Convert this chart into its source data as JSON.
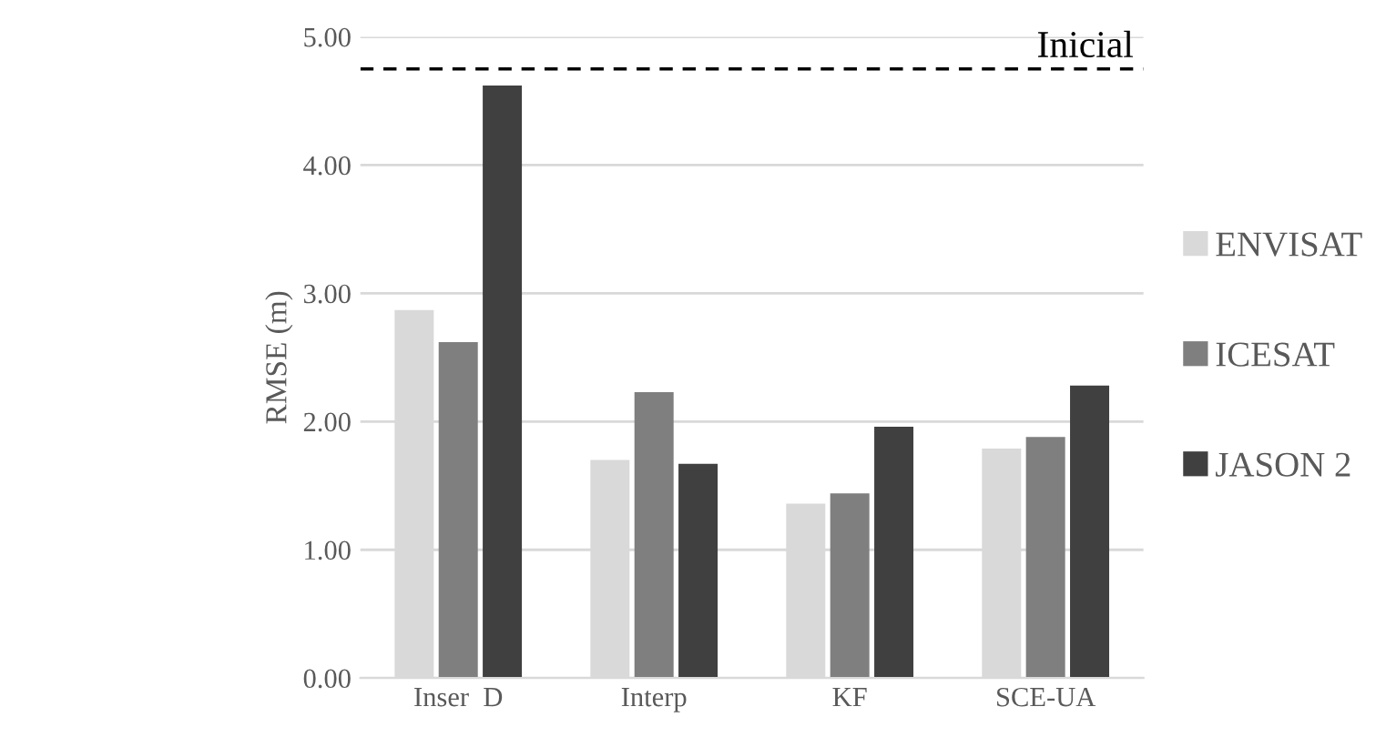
{
  "chart_data": {
    "type": "bar",
    "ylabel": "RMSE (m)",
    "categories": [
      "Inser  D",
      "Interp",
      "KF",
      "SCE-UA"
    ],
    "series": [
      {
        "name": "ENVISAT",
        "color": "#d9d9d9",
        "values": [
          2.87,
          1.7,
          1.36,
          1.79
        ]
      },
      {
        "name": "ICESAT",
        "color": "#7f7f7f",
        "values": [
          2.62,
          2.23,
          1.44,
          1.88
        ]
      },
      {
        "name": "JASON 2",
        "color": "#404040",
        "values": [
          4.62,
          1.67,
          1.96,
          2.28
        ]
      }
    ],
    "ylim": [
      0,
      5
    ],
    "yticks": [
      {
        "value": 0,
        "label": "0.00"
      },
      {
        "value": 1,
        "label": "1.00"
      },
      {
        "value": 2,
        "label": "2.00"
      },
      {
        "value": 3,
        "label": "3.00"
      },
      {
        "value": 4,
        "label": "4.00"
      },
      {
        "value": 5,
        "label": "5.00"
      }
    ],
    "ref_lines": [
      {
        "axis": "y",
        "value": 4.75,
        "label": "Inicial",
        "color": "#000000",
        "line_style": "dashed"
      }
    ],
    "grid": "y",
    "legend": "right"
  }
}
